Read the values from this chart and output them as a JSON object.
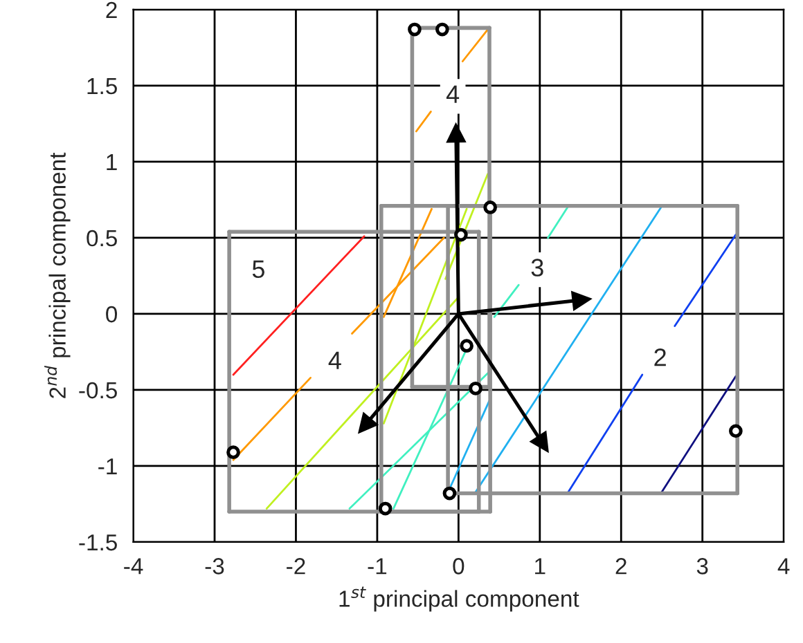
{
  "chart_data": {
    "type": "line",
    "xlabel": "1$^{st}$ principal component",
    "ylabel": "2$^{nd}$ principal component",
    "xlim": [
      -4,
      4
    ],
    "ylim": [
      -1.5,
      2
    ],
    "xticks": [
      -4,
      -3,
      -2,
      -1,
      0,
      1,
      2,
      3,
      4
    ],
    "yticks": [
      -1.5,
      -1,
      -0.5,
      0,
      0.5,
      1,
      1.5,
      2
    ],
    "grid": true,
    "series": [
      {
        "color": "#ff2020",
        "x": [
          -2.77,
          -1.16
        ],
        "values": [
          -0.4,
          0.51
        ]
      },
      {
        "color": "#ff9900",
        "x": [
          -2.77,
          -1.82
        ],
        "values": [
          -0.96,
          -0.42
        ]
      },
      {
        "color": "#ff9900",
        "x": [
          -1.31,
          -0.18
        ],
        "values": [
          -0.13,
          0.5
        ]
      },
      {
        "color": "#ff9900",
        "x": [
          -0.92,
          -0.33
        ],
        "values": [
          -0.02,
          0.69
        ]
      },
      {
        "color": "#ff9900",
        "x": [
          -0.52,
          -0.34
        ],
        "values": [
          1.2,
          1.33
        ]
      },
      {
        "color": "#ff9900",
        "x": [
          0.05,
          0.36
        ],
        "values": [
          1.66,
          1.87
        ]
      },
      {
        "color": "#c0f020",
        "x": [
          -2.36,
          0.0
        ],
        "values": [
          -1.28,
          0.11
        ]
      },
      {
        "color": "#c0f020",
        "x": [
          -0.92,
          0.1
        ],
        "values": [
          -0.72,
          0.69
        ]
      },
      {
        "color": "#c0f020",
        "x": [
          -0.16,
          0.36
        ],
        "values": [
          0.23,
          0.92
        ]
      },
      {
        "color": "#40f0c0",
        "x": [
          -1.34,
          0.36
        ],
        "values": [
          -1.28,
          -0.39
        ]
      },
      {
        "color": "#40f0c0",
        "x": [
          -0.8,
          0.1
        ],
        "values": [
          -1.28,
          -0.23
        ]
      },
      {
        "color": "#40f0c0",
        "x": [
          1.1,
          1.34
        ],
        "values": [
          0.5,
          0.7
        ]
      },
      {
        "color": "#40f0c0",
        "x": [
          0.44,
          0.74
        ],
        "values": [
          -0.02,
          0.19
        ]
      },
      {
        "color": "#20b0f0",
        "x": [
          0.2,
          2.49
        ],
        "values": [
          -1.18,
          0.7
        ]
      },
      {
        "color": "#20b0f0",
        "x": [
          -0.11,
          0.38
        ],
        "values": [
          -1.15,
          -0.57
        ]
      },
      {
        "color": "#1040f0",
        "x": [
          1.34,
          2.26
        ],
        "values": [
          -1.18,
          -0.4
        ]
      },
      {
        "color": "#1040f0",
        "x": [
          2.66,
          3.41
        ],
        "values": [
          -0.08,
          0.52
        ]
      },
      {
        "color": "#101080",
        "x": [
          2.49,
          3.41
        ],
        "values": [
          -1.18,
          -0.41
        ]
      },
      {
        "color": "#909090",
        "x": [
          -0.57,
          0.38
        ],
        "values": [
          -0.48,
          -0.48
        ]
      },
      {
        "color": "#909090",
        "x": [
          0.38,
          0.38
        ],
        "values": [
          -0.48,
          1.88
        ]
      },
      {
        "color": "#909090",
        "x": [
          0.38,
          -0.57
        ],
        "values": [
          1.88,
          1.88
        ]
      },
      {
        "color": "#909090",
        "x": [
          -0.57,
          -0.57
        ],
        "values": [
          1.88,
          -0.48
        ]
      },
      {
        "color": "#909090",
        "x": [
          -0.13,
          3.43
        ],
        "values": [
          -1.18,
          -1.18
        ]
      },
      {
        "color": "#909090",
        "x": [
          3.43,
          3.43
        ],
        "values": [
          -1.18,
          0.71
        ]
      },
      {
        "color": "#909090",
        "x": [
          3.43,
          -0.13
        ],
        "values": [
          0.71,
          0.71
        ]
      },
      {
        "color": "#909090",
        "x": [
          -0.13,
          -0.13
        ],
        "values": [
          0.71,
          -1.18
        ]
      },
      {
        "color": "#909090",
        "x": [
          -2.82,
          0.25
        ],
        "values": [
          -1.3,
          -1.3
        ]
      },
      {
        "color": "#909090",
        "x": [
          0.25,
          0.25
        ],
        "values": [
          -1.3,
          0.54
        ]
      },
      {
        "color": "#909090",
        "x": [
          0.25,
          -2.82
        ],
        "values": [
          0.54,
          0.54
        ]
      },
      {
        "color": "#909090",
        "x": [
          -2.82,
          -2.82
        ],
        "values": [
          0.54,
          -1.3
        ]
      },
      {
        "color": "#909090",
        "x": [
          -0.95,
          0.39
        ],
        "values": [
          -1.3,
          -1.3
        ]
      },
      {
        "color": "#909090",
        "x": [
          0.39,
          0.39
        ],
        "values": [
          -1.3,
          0.71
        ]
      },
      {
        "color": "#909090",
        "x": [
          0.39,
          -0.95
        ],
        "values": [
          0.71,
          0.71
        ]
      },
      {
        "color": "#909090",
        "x": [
          -0.95,
          -0.95
        ],
        "values": [
          0.71,
          -1.3
        ]
      },
      {
        "marker": "triangle",
        "color": "#000000",
        "x": [
          0,
          -0.03
        ],
        "values": [
          0,
          1.17
        ]
      },
      {
        "marker": "triangle",
        "color": "#000000",
        "x": [
          0,
          1.48
        ],
        "values": [
          0,
          0.09
        ]
      },
      {
        "marker": "triangle",
        "color": "#000000",
        "x": [
          0,
          -1.13
        ],
        "values": [
          0,
          -0.72
        ]
      },
      {
        "marker": "triangle",
        "color": "#000000",
        "x": [
          0,
          1.02
        ],
        "values": [
          0,
          -0.84
        ]
      },
      {
        "type": "scatter",
        "color": "#000000",
        "marker": "circle",
        "x": [
          -0.54,
          -0.2,
          0.39,
          0.03,
          0.1,
          0.21,
          -2.77,
          3.41,
          -0.11,
          -0.9
        ],
        "values": [
          1.87,
          1.87,
          0.7,
          0.52,
          -0.21,
          -0.49,
          -0.91,
          -0.77,
          -1.18,
          -1.28
        ]
      }
    ],
    "annotations": [
      {
        "text": "5",
        "x": -2.46,
        "y": 0.28
      },
      {
        "text": "4",
        "x": -0.07,
        "y": 1.43
      },
      {
        "text": "4",
        "x": -1.52,
        "y": -0.32
      },
      {
        "text": "3",
        "x": 0.97,
        "y": 0.29
      },
      {
        "text": "2",
        "x": 2.48,
        "y": -0.3
      }
    ]
  }
}
